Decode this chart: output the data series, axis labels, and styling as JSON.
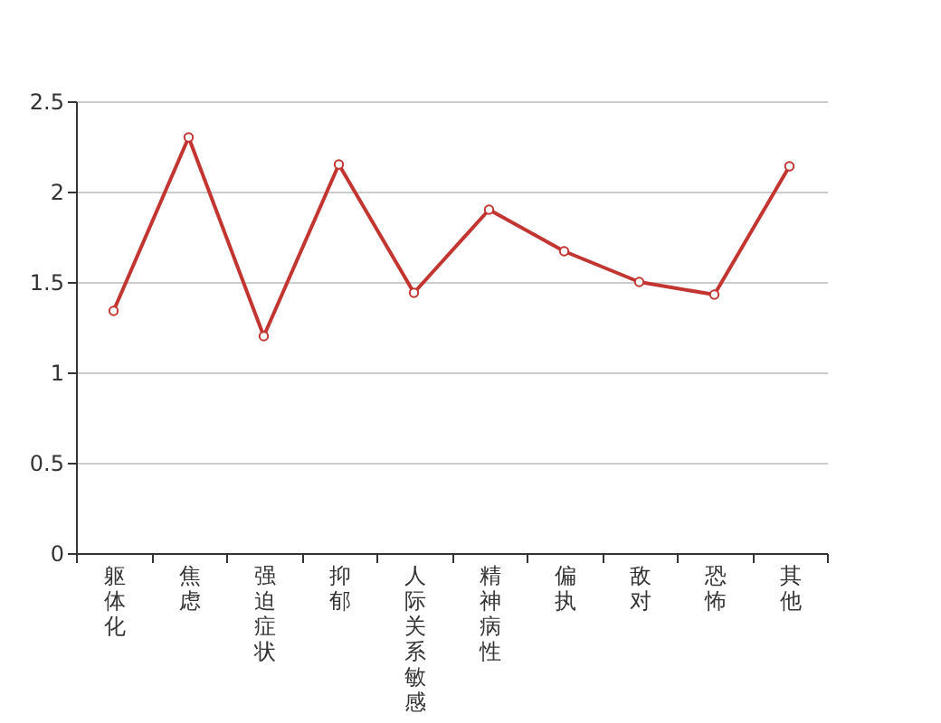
{
  "chart_data": {
    "type": "line",
    "categories": [
      "躯体化",
      "焦虑",
      "强迫症状",
      "抑郁",
      "人际关系敏感",
      "精神病性",
      "偏执",
      "敌对",
      "恐怖",
      "其他"
    ],
    "series": [
      {
        "color": "#c23531",
        "values": [
          1.34,
          2.3,
          1.2,
          2.15,
          1.44,
          1.9,
          1.67,
          1.5,
          1.43,
          2.14
        ]
      }
    ],
    "ylim": [
      0,
      2.5
    ],
    "yticks": [
      0,
      0.5,
      1,
      1.5,
      2,
      2.5
    ],
    "grid": "y",
    "marker": "circle",
    "line_style": "solid",
    "legend": false
  }
}
